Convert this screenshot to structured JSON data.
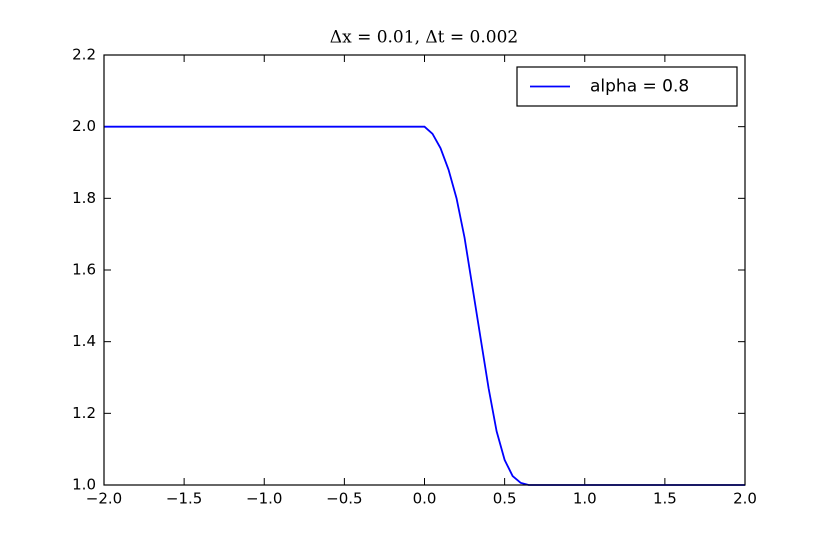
{
  "chart_data": {
    "type": "line",
    "title": "Δx = 0.01, Δt = 0.002",
    "x": [
      -2.0,
      0.0,
      0.05,
      0.1,
      0.15,
      0.2,
      0.25,
      0.3,
      0.35,
      0.4,
      0.45,
      0.5,
      0.55,
      0.6,
      0.65,
      0.7,
      2.0
    ],
    "series": [
      {
        "name": "alpha = 0.8",
        "color": "#0000ff",
        "values": [
          2.0,
          2.0,
          1.98,
          1.94,
          1.88,
          1.8,
          1.69,
          1.55,
          1.41,
          1.27,
          1.15,
          1.07,
          1.025,
          1.006,
          1.0,
          1.0,
          1.0
        ]
      }
    ],
    "xlim": [
      -2.0,
      2.0
    ],
    "ylim": [
      1.0,
      2.2
    ],
    "xticks": [
      {
        "value": -2.0,
        "label": "−2.0"
      },
      {
        "value": -1.5,
        "label": "−1.5"
      },
      {
        "value": -1.0,
        "label": "−1.0"
      },
      {
        "value": -0.5,
        "label": "−0.5"
      },
      {
        "value": 0.0,
        "label": "0.0"
      },
      0.5,
      {
        "value": 1.0,
        "label": "1.0"
      },
      1.5,
      {
        "value": 2.0,
        "label": "2.0"
      }
    ],
    "yticks": [
      {
        "value": 1.0,
        "label": "1.0"
      },
      1.2,
      1.4,
      1.6,
      1.8,
      {
        "value": 2.0,
        "label": "2.0"
      },
      2.2
    ],
    "legend": "upper right",
    "grid": false
  }
}
